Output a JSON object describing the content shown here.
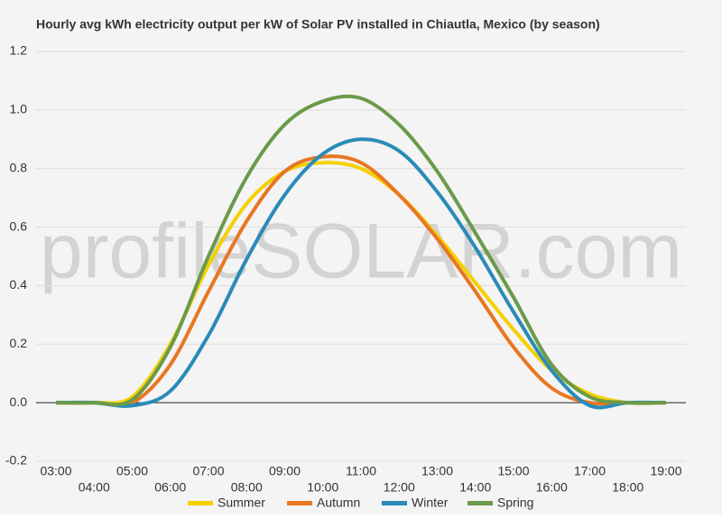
{
  "chart_data": {
    "type": "line",
    "title": "Hourly avg kWh electricity output per kW of Solar PV installed in Chiautla, Mexico (by season)",
    "watermark": "profileSOLAR.com",
    "categories": [
      "03:00",
      "04:00",
      "05:00",
      "06:00",
      "07:00",
      "08:00",
      "09:00",
      "10:00",
      "11:00",
      "12:00",
      "13:00",
      "14:00",
      "15:00",
      "16:00",
      "17:00",
      "18:00",
      "19:00"
    ],
    "series": [
      {
        "name": "Summer",
        "color": "#f5d000",
        "values": [
          0,
          0,
          0.02,
          0.2,
          0.47,
          0.68,
          0.79,
          0.82,
          0.8,
          0.71,
          0.57,
          0.41,
          0.25,
          0.11,
          0.03,
          0,
          0
        ]
      },
      {
        "name": "Autumn",
        "color": "#e87722",
        "values": [
          0,
          0,
          0,
          0.13,
          0.38,
          0.62,
          0.79,
          0.84,
          0.82,
          0.71,
          0.56,
          0.38,
          0.19,
          0.05,
          0,
          0,
          0
        ]
      },
      {
        "name": "Winter",
        "color": "#2a8bb8",
        "values": [
          0,
          0,
          -0.01,
          0.04,
          0.23,
          0.49,
          0.71,
          0.85,
          0.9,
          0.86,
          0.72,
          0.53,
          0.31,
          0.11,
          -0.01,
          0,
          0
        ]
      },
      {
        "name": "Spring",
        "color": "#6b9a4a",
        "values": [
          0,
          0,
          0.01,
          0.19,
          0.5,
          0.77,
          0.95,
          1.03,
          1.04,
          0.95,
          0.79,
          0.58,
          0.36,
          0.13,
          0.02,
          0,
          0
        ]
      }
    ],
    "ylim": [
      -0.2,
      1.2
    ],
    "yticks": [
      -0.2,
      {
        "value": 0,
        "label": "0.0"
      },
      0.2,
      0.4,
      0.6,
      0.8,
      {
        "value": 1,
        "label": "1.0"
      },
      1.2
    ],
    "grid": true,
    "legend": "bottom"
  }
}
